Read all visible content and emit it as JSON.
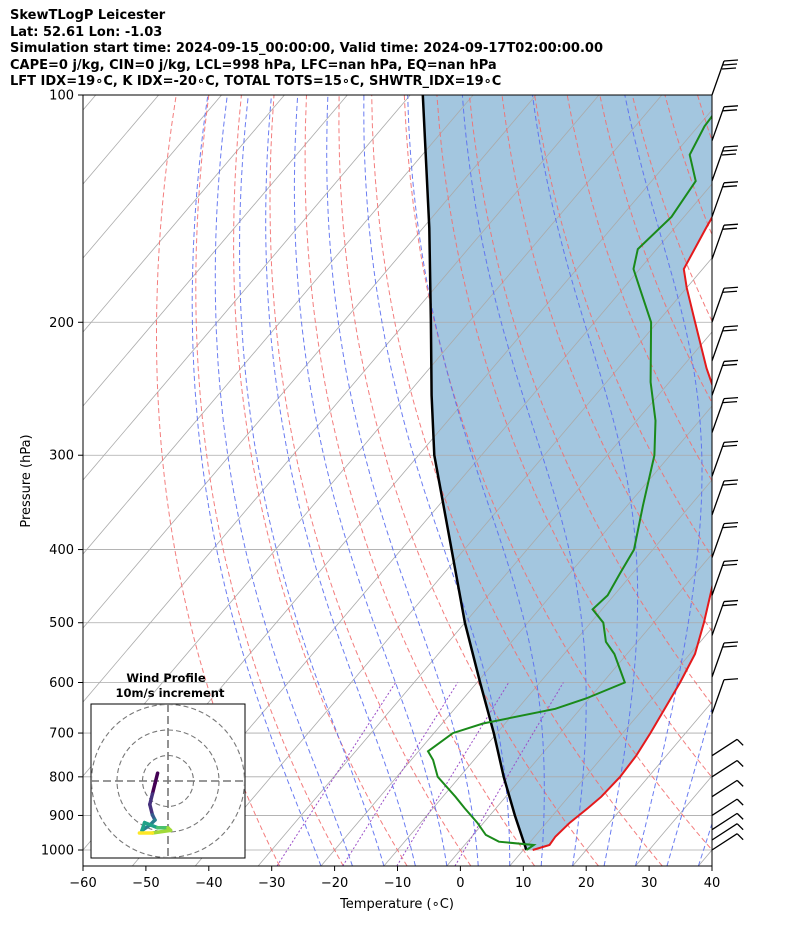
{
  "header": {
    "line1": "SkewTLogP Leicester",
    "line2": "Lat: 52.61   Lon: -1.03",
    "line3": "Simulation start time: 2024-09-15_00:00:00, Valid time: 2024-09-17T02:00:00.00",
    "line4": "CAPE=0 j/kg, CIN=0 j/kg, LCL=998 hPa, LFC=nan hPa, EQ=nan hPa",
    "line5": "LFT IDX=19∘C, K IDX=-20∘C, TOTAL TOTS=15∘C, SHWTR_IDX=19∘C"
  },
  "chart_data": {
    "type": "line",
    "subtype": "skew-T log-P diagram",
    "xlabel": "Temperature (∘C)",
    "ylabel": "Pressure (hPa)",
    "xlim": [
      -60,
      40
    ],
    "ylim_hpa": [
      1050,
      100
    ],
    "x_ticks": [
      -60,
      -50,
      -40,
      -30,
      -20,
      -10,
      0,
      10,
      20,
      30,
      40
    ],
    "y_ticks": [
      100,
      200,
      300,
      400,
      500,
      600,
      700,
      800,
      900,
      1000
    ],
    "grid": true,
    "colors": {
      "temperature": "#e41a1c",
      "dewpoint": "#1a8a1a",
      "parcel": "#000000",
      "cin_cape_shading": "#a3c6df",
      "dry_adiabats": "#f26f6f",
      "moist_adiabats": "#5a6ef0",
      "mixing_ratio": "#9b4fc8",
      "isotherms": "#aaaaaa"
    },
    "series": [
      {
        "name": "Temperature",
        "points": [
          {
            "p": 1000,
            "t": 11.5
          },
          {
            "p": 985,
            "t": 13.5
          },
          {
            "p": 960,
            "t": 13.3
          },
          {
            "p": 920,
            "t": 13.7
          },
          {
            "p": 880,
            "t": 14.6
          },
          {
            "p": 850,
            "t": 15.2
          },
          {
            "p": 800,
            "t": 15.5
          },
          {
            "p": 750,
            "t": 15.2
          },
          {
            "p": 700,
            "t": 14.4
          },
          {
            "p": 650,
            "t": 13.4
          },
          {
            "p": 600,
            "t": 12.3
          },
          {
            "p": 550,
            "t": 10.8
          },
          {
            "p": 500,
            "t": 8.0
          },
          {
            "p": 450,
            "t": 4.6
          },
          {
            "p": 400,
            "t": 0.6
          },
          {
            "p": 350,
            "t": -4.4
          },
          {
            "p": 300,
            "t": -10.9
          },
          {
            "p": 270,
            "t": -16.0
          },
          {
            "p": 230,
            "t": -26.0
          },
          {
            "p": 200,
            "t": -34.0
          },
          {
            "p": 180,
            "t": -40.0
          },
          {
            "p": 170,
            "t": -43.0
          },
          {
            "p": 150,
            "t": -45.0
          },
          {
            "p": 140,
            "t": -46.0
          },
          {
            "p": 130,
            "t": -48.0
          },
          {
            "p": 120,
            "t": -52.0
          },
          {
            "p": 100,
            "t": -57.5
          }
        ]
      },
      {
        "name": "Dewpoint",
        "points": [
          {
            "p": 1000,
            "t": 10.5
          },
          {
            "p": 985,
            "t": 11.0
          },
          {
            "p": 975,
            "t": 5.0
          },
          {
            "p": 955,
            "t": 2.0
          },
          {
            "p": 920,
            "t": -1.0
          },
          {
            "p": 880,
            "t": -5.0
          },
          {
            "p": 850,
            "t": -8.0
          },
          {
            "p": 800,
            "t": -13.5
          },
          {
            "p": 760,
            "t": -16.5
          },
          {
            "p": 740,
            "t": -18.5
          },
          {
            "p": 700,
            "t": -17.0
          },
          {
            "p": 680,
            "t": -13.5
          },
          {
            "p": 650,
            "t": -4.0
          },
          {
            "p": 630,
            "t": -0.5
          },
          {
            "p": 600,
            "t": 3.5
          },
          {
            "p": 550,
            "t": -2.0
          },
          {
            "p": 530,
            "t": -5.0
          },
          {
            "p": 500,
            "t": -8.0
          },
          {
            "p": 480,
            "t": -11.5
          },
          {
            "p": 460,
            "t": -11.0
          },
          {
            "p": 430,
            "t": -12.0
          },
          {
            "p": 400,
            "t": -13.0
          },
          {
            "p": 350,
            "t": -17.5
          },
          {
            "p": 300,
            "t": -22.5
          },
          {
            "p": 270,
            "t": -27.0
          },
          {
            "p": 240,
            "t": -33.0
          },
          {
            "p": 200,
            "t": -41.0
          },
          {
            "p": 180,
            "t": -47.5
          },
          {
            "p": 170,
            "t": -51.0
          },
          {
            "p": 160,
            "t": -53.0
          },
          {
            "p": 145,
            "t": -52.0
          },
          {
            "p": 130,
            "t": -53.0
          },
          {
            "p": 120,
            "t": -57.5
          },
          {
            "p": 110,
            "t": -59.0
          },
          {
            "p": 100,
            "t": -59.5
          }
        ]
      },
      {
        "name": "Parcel",
        "points": [
          {
            "p": 1000,
            "t": 10.5
          },
          {
            "p": 900,
            "t": 4.0
          },
          {
            "p": 800,
            "t": -3.0
          },
          {
            "p": 700,
            "t": -10.5
          },
          {
            "p": 600,
            "t": -19.5
          },
          {
            "p": 500,
            "t": -30.0
          },
          {
            "p": 400,
            "t": -42.0
          },
          {
            "p": 300,
            "t": -57.5
          },
          {
            "p": 250,
            "t": -66.0
          },
          {
            "p": 200,
            "t": -76.0
          },
          {
            "p": 150,
            "t": -89.0
          },
          {
            "p": 100,
            "t": -108.0
          }
        ]
      }
    ],
    "wind_barbs": [
      {
        "p": 100,
        "speed_kt": 25
      },
      {
        "p": 115,
        "speed_kt": 20
      },
      {
        "p": 130,
        "speed_kt": 25
      },
      {
        "p": 145,
        "speed_kt": 20
      },
      {
        "p": 165,
        "speed_kt": 20
      },
      {
        "p": 200,
        "speed_kt": 20
      },
      {
        "p": 225,
        "speed_kt": 20
      },
      {
        "p": 250,
        "speed_kt": 20
      },
      {
        "p": 280,
        "speed_kt": 20
      },
      {
        "p": 320,
        "speed_kt": 20
      },
      {
        "p": 360,
        "speed_kt": 20
      },
      {
        "p": 410,
        "speed_kt": 20
      },
      {
        "p": 460,
        "speed_kt": 20
      },
      {
        "p": 520,
        "speed_kt": 20
      },
      {
        "p": 590,
        "speed_kt": 20
      },
      {
        "p": 660,
        "speed_kt": 10
      },
      {
        "p": 750,
        "speed_kt": 10
      },
      {
        "p": 800,
        "speed_kt": 10
      },
      {
        "p": 850,
        "speed_kt": 10
      },
      {
        "p": 900,
        "speed_kt": 10
      },
      {
        "p": 940,
        "speed_kt": 10
      },
      {
        "p": 970,
        "speed_kt": 10
      },
      {
        "p": 1000,
        "speed_kt": 10
      }
    ],
    "inset": {
      "title_line1": "Wind Profile",
      "title_line2": "10m/s increment",
      "hodograph": [
        {
          "u": -2.0,
          "v": 1.5
        },
        {
          "u": -2.5,
          "v": -0.5
        },
        {
          "u": -3.0,
          "v": -2.5
        },
        {
          "u": -3.5,
          "v": -4.5
        },
        {
          "u": -3.0,
          "v": -6.5
        },
        {
          "u": -2.5,
          "v": -7.5
        },
        {
          "u": -3.5,
          "v": -8.5
        },
        {
          "u": -5.0,
          "v": -9.5
        },
        {
          "u": -4.5,
          "v": -8.0
        },
        {
          "u": -2.0,
          "v": -9.0
        },
        {
          "u": 0.0,
          "v": -9.0
        },
        {
          "u": 0.5,
          "v": -9.5
        },
        {
          "u": -3.0,
          "v": -10.0
        },
        {
          "u": -5.5,
          "v": -10.0
        }
      ]
    }
  }
}
